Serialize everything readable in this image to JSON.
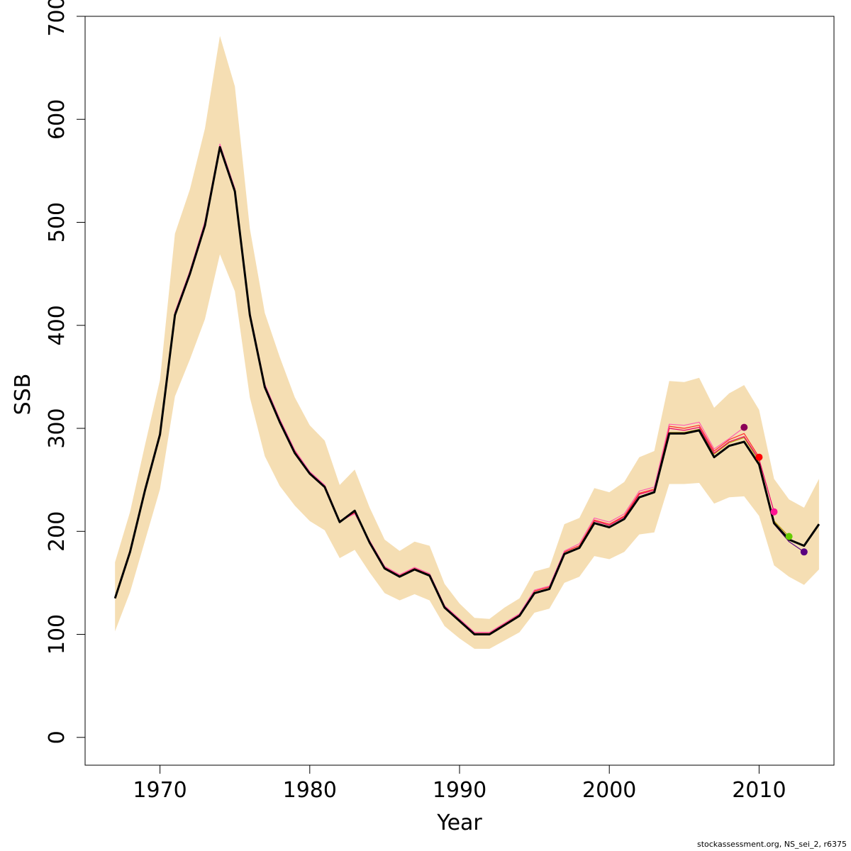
{
  "chart_data": {
    "type": "line",
    "xlabel": "Year",
    "ylabel": "SSB",
    "xlim": [
      1965,
      2015
    ],
    "ylim": [
      -27,
      700
    ],
    "x_ticks": [
      1970,
      1980,
      1990,
      2000,
      2010
    ],
    "y_ticks": [
      0,
      100,
      200,
      300,
      400,
      500,
      600,
      700
    ],
    "grid": false,
    "legend": "none",
    "band": {
      "color": "#f5deb3",
      "x": [
        1967,
        1968,
        1969,
        1970,
        1971,
        1972,
        1973,
        1974,
        1975,
        1976,
        1977,
        1978,
        1979,
        1980,
        1981,
        1982,
        1983,
        1984,
        1985,
        1986,
        1987,
        1988,
        1989,
        1990,
        1991,
        1992,
        1993,
        1994,
        1995,
        1996,
        1997,
        1998,
        1999,
        2000,
        2001,
        2002,
        2003,
        2004,
        2005,
        2006,
        2007,
        2008,
        2009,
        2010,
        2011,
        2012,
        2013,
        2014
      ],
      "lower": [
        103,
        141,
        191,
        241,
        331,
        367,
        406,
        469,
        433,
        330,
        273,
        244,
        225,
        210,
        201,
        174,
        182,
        160,
        140,
        133,
        139,
        133,
        108,
        96,
        86,
        86,
        94,
        102,
        121,
        125,
        150,
        156,
        176,
        173,
        180,
        197,
        199,
        246,
        246,
        247,
        227,
        233,
        234,
        215,
        167,
        156,
        148,
        163
      ],
      "upper": [
        170,
        219,
        284,
        347,
        489,
        532,
        591,
        681,
        632,
        494,
        412,
        369,
        330,
        303,
        288,
        245,
        260,
        223,
        192,
        181,
        190,
        186,
        149,
        130,
        116,
        115,
        126,
        135,
        161,
        165,
        207,
        213,
        242,
        238,
        248,
        272,
        278,
        346,
        345,
        349,
        320,
        334,
        342,
        318,
        251,
        231,
        223,
        251
      ]
    },
    "series": [
      {
        "color": "#000000",
        "width": 3,
        "x": [
          1967,
          1968,
          1969,
          1970,
          1971,
          1972,
          1973,
          1974,
          1975,
          1976,
          1977,
          1978,
          1979,
          1980,
          1981,
          1982,
          1983,
          1984,
          1985,
          1986,
          1987,
          1988,
          1989,
          1990,
          1991,
          1992,
          1993,
          1994,
          1995,
          1996,
          1997,
          1998,
          1999,
          2000,
          2001,
          2002,
          2003,
          2004,
          2005,
          2006,
          2007,
          2008,
          2009,
          2010,
          2011,
          2012,
          2013,
          2014
        ],
        "values": [
          135,
          180,
          240,
          294,
          410,
          450,
          497,
          573,
          530,
          410,
          340,
          306,
          276,
          256,
          243,
          209,
          220,
          189,
          164,
          156,
          163,
          157,
          126,
          113,
          100,
          100,
          109,
          118,
          140,
          144,
          178,
          184,
          208,
          204,
          212,
          233,
          238,
          295,
          295,
          298,
          272,
          283,
          287,
          265,
          208,
          192,
          186,
          207
        ]
      },
      {
        "color": "#b5970c",
        "width": 1.2,
        "x": [
          1967,
          1968,
          1969,
          1970,
          1971,
          1972,
          1973,
          1974,
          1975,
          1976,
          1977,
          1978,
          1979,
          1980,
          1981,
          1982,
          1983,
          1984,
          1985,
          1986,
          1987,
          1988,
          1989,
          1990,
          1991,
          1992,
          1993,
          1994,
          1995,
          1996,
          1997,
          1998,
          1999,
          2000,
          2001,
          2002,
          2003,
          2004,
          2005,
          2006,
          2007,
          2008,
          2009,
          2010,
          2011,
          2012
        ],
        "values": [
          135,
          180,
          240,
          294,
          410,
          450,
          497,
          573,
          530,
          410,
          340,
          306,
          276,
          256,
          243,
          209,
          220,
          189,
          164,
          156,
          163,
          157,
          126,
          113,
          100,
          100,
          109,
          118,
          140,
          144,
          178,
          184,
          208,
          204,
          212,
          233,
          238,
          296,
          296,
          299,
          275,
          286,
          291,
          268,
          210,
          195
        ],
        "endpoint_color": "#66cc00"
      },
      {
        "color": "#e8006a",
        "width": 1.2,
        "x": [
          1967,
          1968,
          1969,
          1970,
          1971,
          1972,
          1973,
          1974,
          1975,
          1976,
          1977,
          1978,
          1979,
          1980,
          1981,
          1982,
          1983,
          1984,
          1985,
          1986,
          1987,
          1988,
          1989,
          1990,
          1991,
          1992,
          1993,
          1994,
          1995,
          1996,
          1997,
          1998,
          1999,
          2000,
          2001,
          2002,
          2003,
          2004,
          2005,
          2006,
          2007,
          2008,
          2009,
          2010,
          2011
        ],
        "values": [
          136,
          181,
          241,
          295,
          412,
          452,
          500,
          575,
          532,
          412,
          342,
          308,
          278,
          257,
          244,
          209,
          218,
          190,
          165,
          157,
          164,
          158,
          127,
          114,
          101,
          101,
          110,
          119,
          142,
          146,
          180,
          186,
          210,
          206,
          214,
          236,
          240,
          300,
          298,
          301,
          276,
          287,
          292,
          270,
          219
        ],
        "endpoint_color": "#ff1493"
      },
      {
        "color": "#ff2a2a",
        "width": 1.2,
        "x": [
          1967,
          1968,
          1969,
          1970,
          1971,
          1972,
          1973,
          1974,
          1975,
          1976,
          1977,
          1978,
          1979,
          1980,
          1981,
          1982,
          1983,
          1984,
          1985,
          1986,
          1987,
          1988,
          1989,
          1990,
          1991,
          1992,
          1993,
          1994,
          1995,
          1996,
          1997,
          1998,
          1999,
          2000,
          2001,
          2002,
          2003,
          2004,
          2005,
          2006,
          2007,
          2008,
          2009,
          2010
        ],
        "values": [
          136,
          181,
          241,
          295,
          412,
          452,
          500,
          575,
          532,
          412,
          342,
          308,
          278,
          257,
          244,
          210,
          218,
          190,
          165,
          157,
          164,
          158,
          127,
          114,
          101,
          101,
          110,
          119,
          142,
          146,
          180,
          186,
          211,
          207,
          215,
          237,
          241,
          302,
          300,
          303,
          278,
          289,
          295,
          272
        ],
        "endpoint_color": "#ff0000"
      },
      {
        "color": "#ff5fb0",
        "width": 1.2,
        "x": [
          1967,
          1968,
          1969,
          1970,
          1971,
          1972,
          1973,
          1974,
          1975,
          1976,
          1977,
          1978,
          1979,
          1980,
          1981,
          1982,
          1983,
          1984,
          1985,
          1986,
          1987,
          1988,
          1989,
          1990,
          1991,
          1992,
          1993,
          1994,
          1995,
          1996,
          1997,
          1998,
          1999,
          2000,
          2001,
          2002,
          2003,
          2004,
          2005,
          2006,
          2007,
          2008,
          2009
        ],
        "values": [
          136,
          182,
          242,
          296,
          413,
          453,
          501,
          576,
          533,
          413,
          343,
          309,
          279,
          258,
          245,
          210,
          217,
          191,
          166,
          158,
          165,
          159,
          128,
          115,
          102,
          102,
          111,
          120,
          143,
          147,
          181,
          188,
          213,
          209,
          217,
          239,
          243,
          304,
          303,
          306,
          280,
          290,
          301
        ],
        "endpoint_color": "#8b0057"
      },
      {
        "color": "#5a0080",
        "width": 1.2,
        "x": [
          1967,
          1968,
          1969,
          1970,
          1971,
          1972,
          1973,
          1974,
          1975,
          1976,
          1977,
          1978,
          1979,
          1980,
          1981,
          1982,
          1983,
          1984,
          1985,
          1986,
          1987,
          1988,
          1989,
          1990,
          1991,
          1992,
          1993,
          1994,
          1995,
          1996,
          1997,
          1998,
          1999,
          2000,
          2001,
          2002,
          2003,
          2004,
          2005,
          2006,
          2007,
          2008,
          2009,
          2010,
          2011,
          2012,
          2013
        ],
        "values": [
          135,
          180,
          240,
          294,
          410,
          450,
          497,
          573,
          530,
          410,
          340,
          306,
          276,
          256,
          243,
          209,
          220,
          189,
          164,
          156,
          163,
          157,
          126,
          113,
          100,
          100,
          109,
          118,
          140,
          144,
          178,
          184,
          208,
          204,
          212,
          233,
          238,
          295,
          295,
          298,
          272,
          283,
          287,
          265,
          207,
          190,
          180
        ],
        "endpoint_color": "#5a0080"
      }
    ],
    "points": [
      {
        "x": 2009,
        "y": 301,
        "color": "#8b0057"
      },
      {
        "x": 2010,
        "y": 272,
        "color": "#ff0000"
      },
      {
        "x": 2011,
        "y": 219,
        "color": "#ff1493"
      },
      {
        "x": 2012,
        "y": 195,
        "color": "#66cc00"
      },
      {
        "x": 2013,
        "y": 180,
        "color": "#5a0080"
      }
    ]
  },
  "footer": {
    "note": "stockassessment.org, NS_sei_2, r6375"
  }
}
